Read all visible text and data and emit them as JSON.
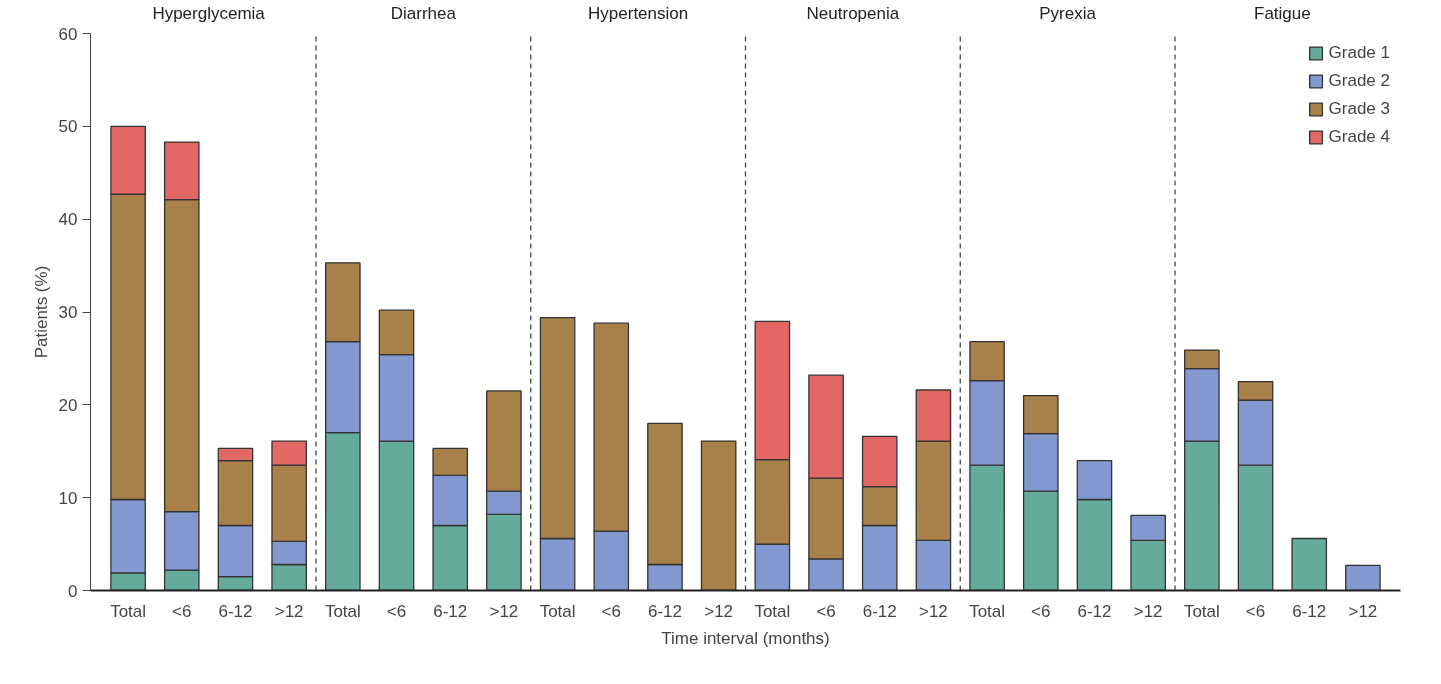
{
  "chart_data": {
    "type": "bar",
    "stacked": true,
    "xlabel": "Time interval (months)",
    "ylabel": "Patients (%)",
    "categories": [
      "Total",
      "<6",
      "6-12",
      ">12",
      "Total",
      "<6",
      "6-12",
      ">12",
      "Total",
      "<6",
      "6-12",
      ">12",
      "Total",
      "<6",
      "6-12",
      ">12",
      "Total",
      "<6",
      "6-12",
      ">12",
      "Total",
      "<6",
      "6-12",
      ">12"
    ],
    "series": [
      {
        "name": "Grade 1",
        "color": "#64ab9c",
        "values": [
          1.9,
          2.2,
          1.5,
          2.8,
          17.0,
          16.1,
          7.0,
          8.2,
          null,
          null,
          null,
          null,
          null,
          null,
          null,
          null,
          13.5,
          10.7,
          9.8,
          5.4,
          16.1,
          13.5,
          5.6,
          null
        ]
      },
      {
        "name": "Grade 2",
        "color": "#8298cf",
        "values": [
          7.9,
          6.3,
          5.5,
          2.5,
          9.8,
          9.3,
          5.4,
          2.5,
          5.6,
          6.4,
          2.8,
          null,
          5.0,
          3.4,
          7.0,
          5.4,
          9.1,
          6.2,
          4.2,
          2.7,
          7.8,
          7.0,
          null,
          2.7
        ]
      },
      {
        "name": "Grade 3",
        "color": "#a7804a",
        "values": [
          32.9,
          33.6,
          7.0,
          8.2,
          8.5,
          4.8,
          2.9,
          10.8,
          23.8,
          22.4,
          15.2,
          16.1,
          9.1,
          8.7,
          4.2,
          10.7,
          4.2,
          4.1,
          null,
          null,
          2.0,
          2.0,
          null,
          null
        ]
      },
      {
        "name": "Grade 4",
        "color": "#e26866",
        "values": [
          7.3,
          6.2,
          1.3,
          2.6,
          null,
          null,
          null,
          null,
          null,
          null,
          null,
          null,
          14.9,
          11.1,
          5.4,
          5.5,
          null,
          null,
          null,
          null,
          null,
          null,
          null,
          null
        ]
      }
    ],
    "annotations": [
      "Hyperglycemia",
      "Diarrhea",
      "Hypertension",
      "Neutropenia",
      "Pyrexia",
      "Fatigue"
    ],
    "ylim": [
      0,
      60
    ],
    "yticks": [
      0,
      10,
      20,
      30,
      40,
      50,
      60
    ],
    "grid": false,
    "legend": "top right"
  }
}
